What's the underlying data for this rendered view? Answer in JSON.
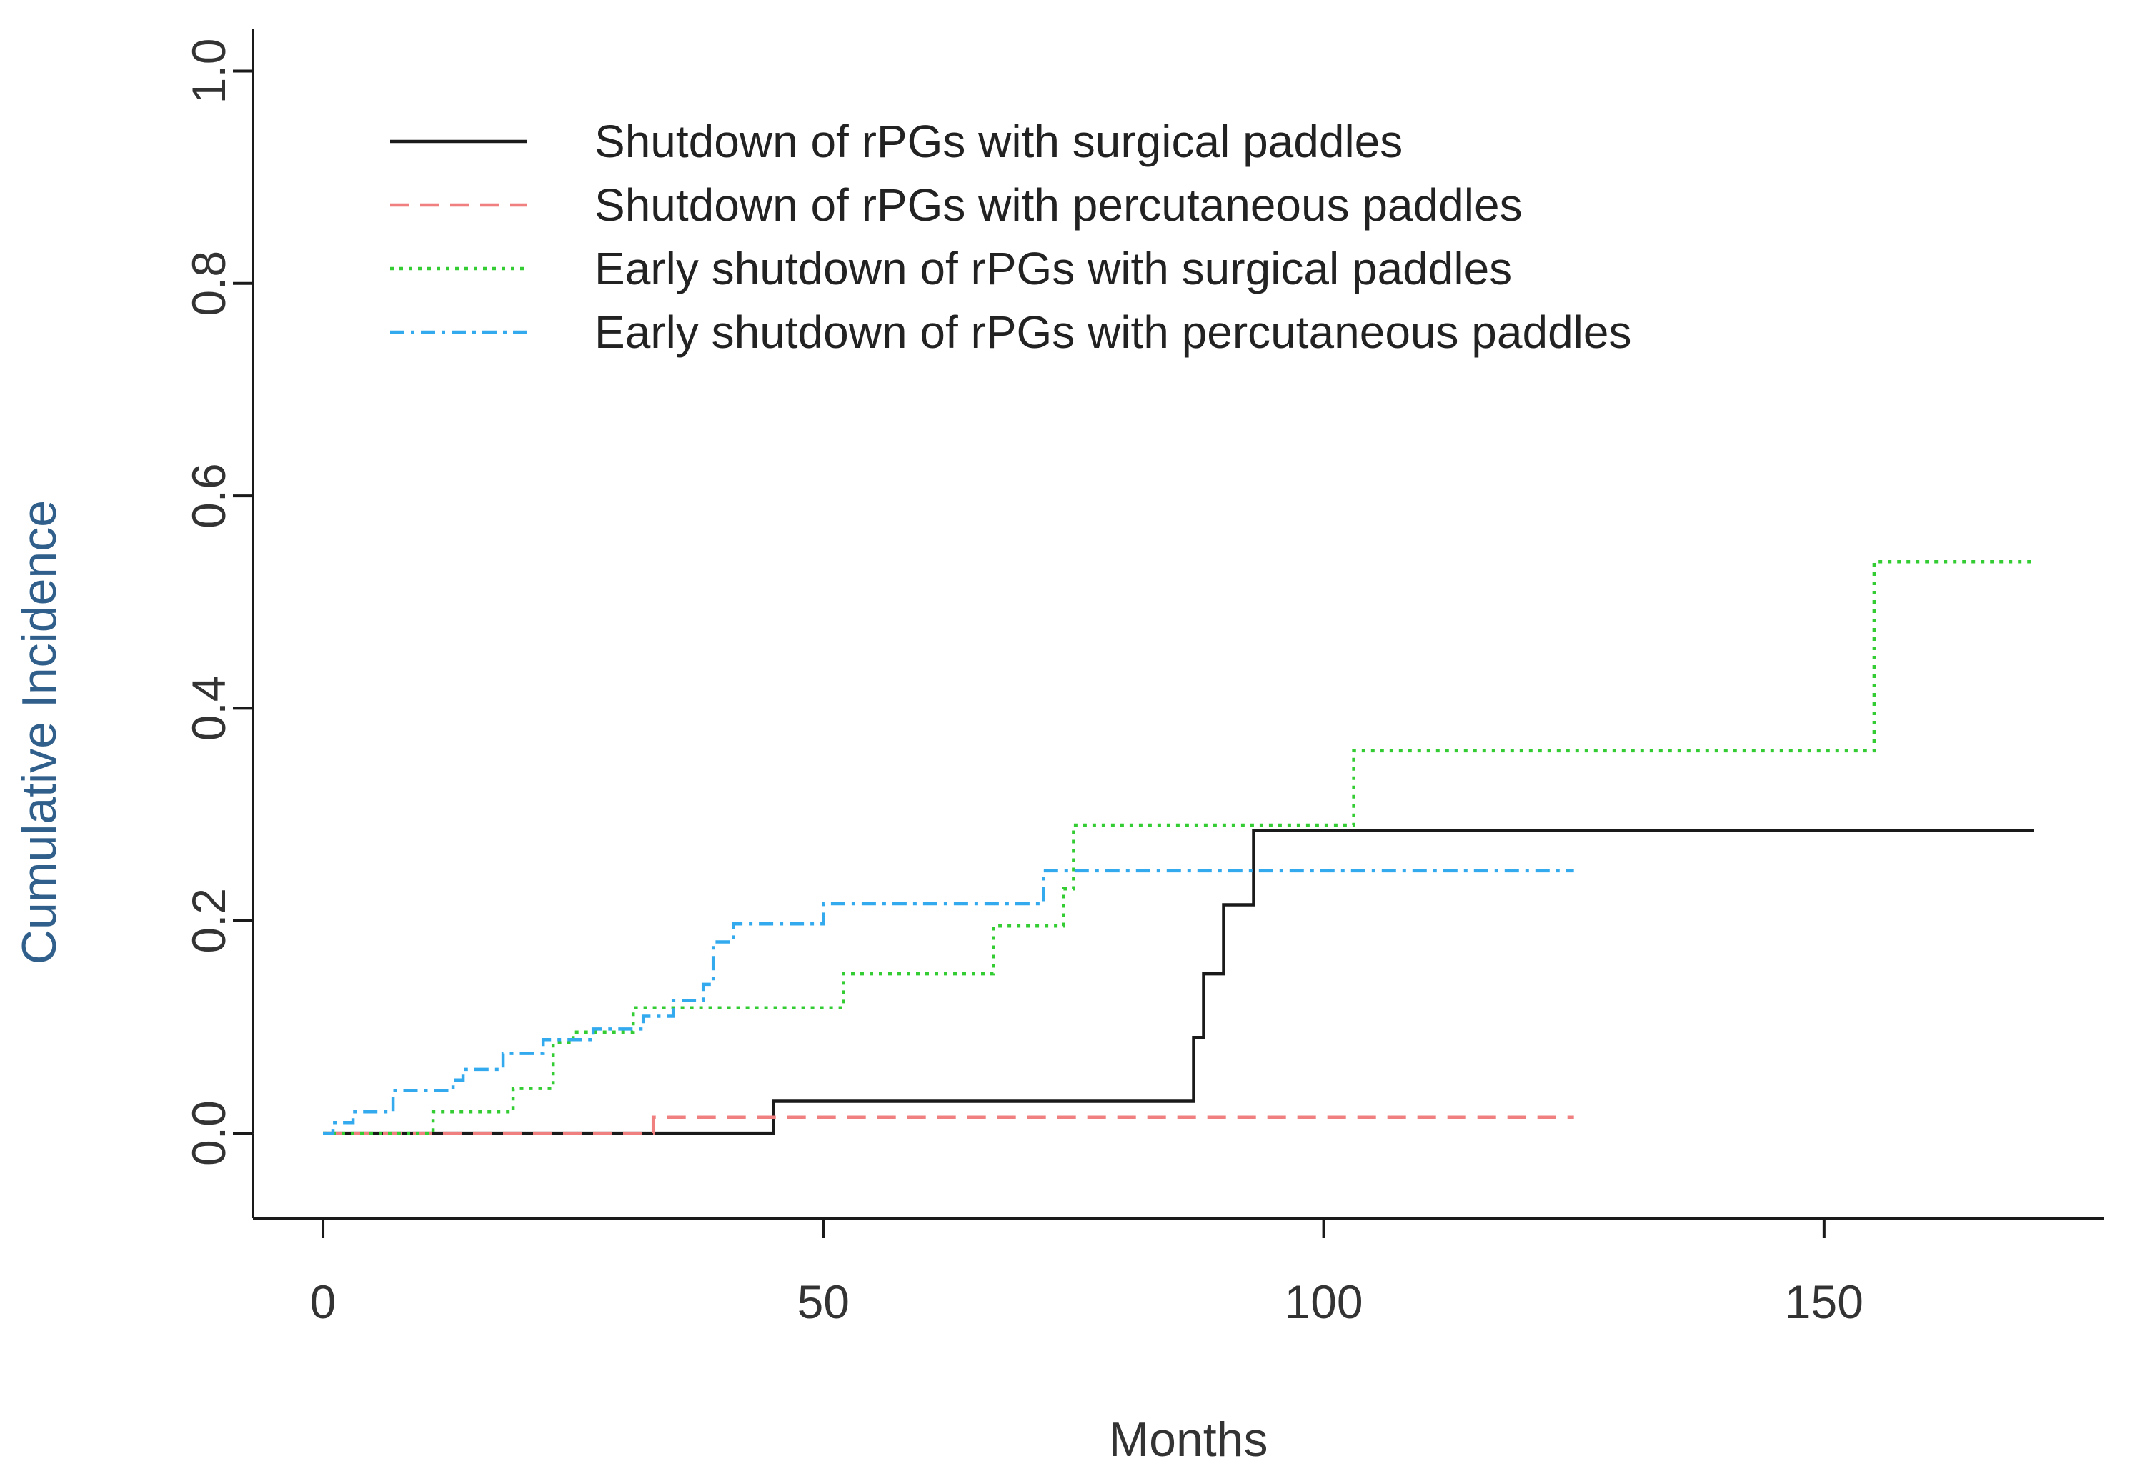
{
  "chart_data": {
    "type": "line",
    "step": true,
    "title": "",
    "xlabel": "Months",
    "ylabel": "Cumulative Incidence",
    "xlim": [
      -7,
      178
    ],
    "ylim": [
      -0.08,
      1.04
    ],
    "xticks": [
      0,
      50,
      100,
      150
    ],
    "xtick_labels": [
      "0",
      "50",
      "100",
      "150"
    ],
    "yticks": [
      0.0,
      0.2,
      0.4,
      0.6,
      0.8,
      1.0
    ],
    "ytick_labels": [
      "0.0",
      "0.2",
      "0.4",
      "0.6",
      "0.8",
      "1.0"
    ],
    "grid": false,
    "legend_position": "top-left",
    "series": [
      {
        "name": "Shutdown of rPGs with surgical paddles",
        "color": "#1a1a1a",
        "dash": "solid",
        "points": [
          [
            0,
            0.0
          ],
          [
            45,
            0.0
          ],
          [
            45,
            0.03
          ],
          [
            87,
            0.03
          ],
          [
            87,
            0.09
          ],
          [
            88,
            0.09
          ],
          [
            88,
            0.15
          ],
          [
            90,
            0.15
          ],
          [
            90,
            0.215
          ],
          [
            93,
            0.215
          ],
          [
            93,
            0.285
          ],
          [
            171,
            0.285
          ]
        ]
      },
      {
        "name": "Shutdown of rPGs with percutaneous paddles",
        "color": "#f08080",
        "dash": "dashed",
        "points": [
          [
            0,
            0.0
          ],
          [
            33,
            0.0
          ],
          [
            33,
            0.015
          ],
          [
            125,
            0.015
          ]
        ]
      },
      {
        "name": "Early shutdown of rPGs with surgical paddles",
        "color": "#33cc33",
        "dash": "dotted",
        "points": [
          [
            0,
            0.0
          ],
          [
            11,
            0.0
          ],
          [
            11,
            0.02
          ],
          [
            19,
            0.02
          ],
          [
            19,
            0.042
          ],
          [
            23,
            0.042
          ],
          [
            23,
            0.085
          ],
          [
            25,
            0.085
          ],
          [
            25,
            0.095
          ],
          [
            31,
            0.095
          ],
          [
            31,
            0.118
          ],
          [
            52,
            0.118
          ],
          [
            52,
            0.15
          ],
          [
            67,
            0.15
          ],
          [
            67,
            0.195
          ],
          [
            74,
            0.195
          ],
          [
            74,
            0.23
          ],
          [
            75,
            0.23
          ],
          [
            75,
            0.29
          ],
          [
            103,
            0.29
          ],
          [
            103,
            0.36
          ],
          [
            155,
            0.36
          ],
          [
            155,
            0.538
          ],
          [
            171,
            0.538
          ]
        ]
      },
      {
        "name": "Early shutdown of rPGs with percutaneous paddles",
        "color": "#33aaee",
        "dash": "dashdot",
        "points": [
          [
            0,
            0.0
          ],
          [
            1,
            0.0
          ],
          [
            1,
            0.01
          ],
          [
            3,
            0.01
          ],
          [
            3,
            0.02
          ],
          [
            7,
            0.02
          ],
          [
            7,
            0.04
          ],
          [
            13,
            0.04
          ],
          [
            13,
            0.05
          ],
          [
            14,
            0.05
          ],
          [
            14,
            0.06
          ],
          [
            18,
            0.06
          ],
          [
            18,
            0.075
          ],
          [
            22,
            0.075
          ],
          [
            22,
            0.088
          ],
          [
            27,
            0.088
          ],
          [
            27,
            0.098
          ],
          [
            32,
            0.098
          ],
          [
            32,
            0.11
          ],
          [
            35,
            0.11
          ],
          [
            35,
            0.125
          ],
          [
            38,
            0.125
          ],
          [
            38,
            0.14
          ],
          [
            39,
            0.14
          ],
          [
            39,
            0.18
          ],
          [
            41,
            0.18
          ],
          [
            41,
            0.197
          ],
          [
            50,
            0.197
          ],
          [
            50,
            0.216
          ],
          [
            72,
            0.216
          ],
          [
            72,
            0.247
          ],
          [
            125,
            0.247
          ]
        ]
      }
    ]
  }
}
